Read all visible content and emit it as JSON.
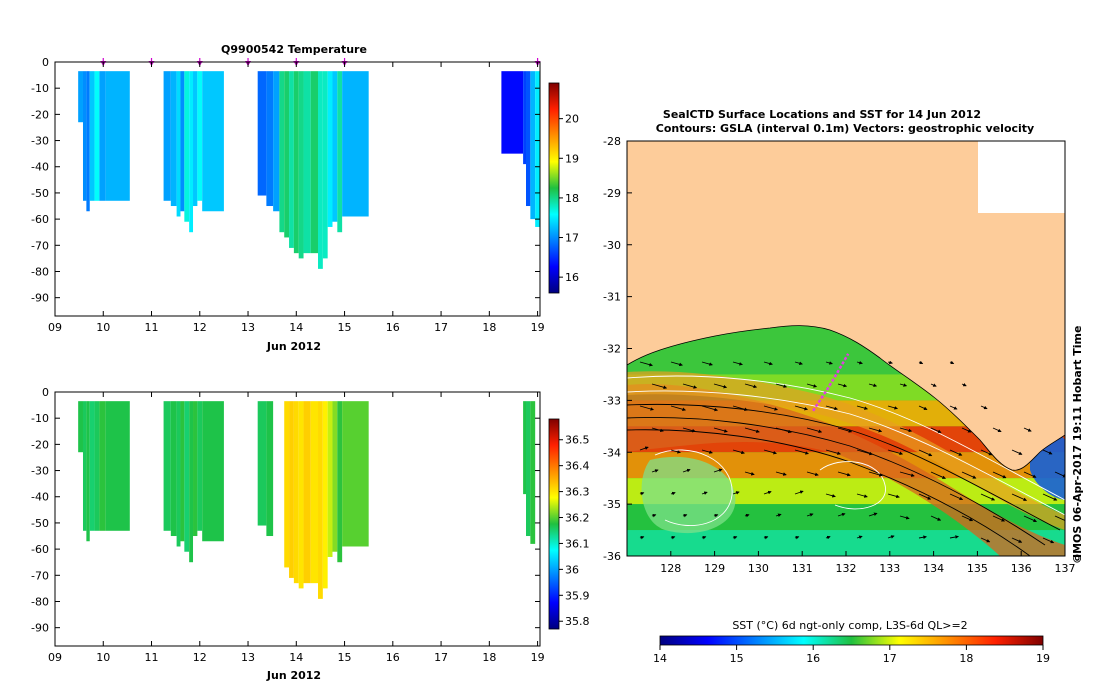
{
  "chart_data": [
    {
      "type": "heatmap",
      "title": "Q9900542  Temperature",
      "xlabel": "Jun 2012",
      "xlim": [
        9,
        19.05
      ],
      "ylim": [
        -97,
        0
      ],
      "x_ticks": [
        "09",
        "10",
        "11",
        "12",
        "13",
        "14",
        "15",
        "16",
        "17",
        "18",
        "19"
      ],
      "y_ticks": [
        "0",
        "-10",
        "-20",
        "-30",
        "-40",
        "-50",
        "-60",
        "-70",
        "-80",
        "-90"
      ],
      "colorbar": {
        "min": 15.6,
        "max": 20.9,
        "ticks": [
          "16",
          "17",
          "18",
          "19",
          "20"
        ],
        "palette": "jet"
      },
      "profile_markers_x": [
        10.0,
        11.0,
        12.0,
        13.0,
        14.0,
        15.0,
        19.0
      ],
      "profiles": [
        {
          "x0": 9.48,
          "x1": 9.58,
          "depth": 23,
          "value": 17.1
        },
        {
          "x0": 9.58,
          "x1": 9.65,
          "depth": 53,
          "value": 17.0
        },
        {
          "x0": 9.65,
          "x1": 9.72,
          "depth": 57,
          "value": 16.9
        },
        {
          "x0": 9.72,
          "x1": 9.82,
          "depth": 53,
          "value": 17.3
        },
        {
          "x0": 9.82,
          "x1": 9.92,
          "depth": 53,
          "value": 17.6
        },
        {
          "x0": 9.92,
          "x1": 10.05,
          "depth": 53,
          "value": 17.1
        },
        {
          "x0": 10.05,
          "x1": 10.55,
          "depth": 53,
          "value": 17.2
        },
        {
          "x0": 11.25,
          "x1": 11.4,
          "depth": 53,
          "value": 17.1
        },
        {
          "x0": 11.4,
          "x1": 11.52,
          "depth": 55,
          "value": 17.2
        },
        {
          "x0": 11.52,
          "x1": 11.6,
          "depth": 59,
          "value": 17.4
        },
        {
          "x0": 11.6,
          "x1": 11.68,
          "depth": 57,
          "value": 17.0
        },
        {
          "x0": 11.68,
          "x1": 11.78,
          "depth": 61,
          "value": 17.7
        },
        {
          "x0": 11.78,
          "x1": 11.86,
          "depth": 65,
          "value": 17.5
        },
        {
          "x0": 11.86,
          "x1": 11.95,
          "depth": 55,
          "value": 17.3
        },
        {
          "x0": 11.95,
          "x1": 12.05,
          "depth": 53,
          "value": 17.6
        },
        {
          "x0": 12.05,
          "x1": 12.5,
          "depth": 57,
          "value": 17.3
        },
        {
          "x0": 13.2,
          "x1": 13.38,
          "depth": 51,
          "value": 16.8
        },
        {
          "x0": 13.38,
          "x1": 13.52,
          "depth": 55,
          "value": 16.9
        },
        {
          "x0": 13.52,
          "x1": 13.65,
          "depth": 57,
          "value": 17.1
        },
        {
          "x0": 13.65,
          "x1": 13.75,
          "depth": 65,
          "value": 18.0
        },
        {
          "x0": 13.75,
          "x1": 13.85,
          "depth": 67,
          "value": 18.1
        },
        {
          "x0": 13.85,
          "x1": 13.95,
          "depth": 71,
          "value": 17.9
        },
        {
          "x0": 13.95,
          "x1": 14.05,
          "depth": 73,
          "value": 18.1
        },
        {
          "x0": 14.05,
          "x1": 14.15,
          "depth": 75,
          "value": 18.0
        },
        {
          "x0": 14.15,
          "x1": 14.3,
          "depth": 73,
          "value": 17.9
        },
        {
          "x0": 14.3,
          "x1": 14.45,
          "depth": 73,
          "value": 18.1
        },
        {
          "x0": 14.45,
          "x1": 14.55,
          "depth": 79,
          "value": 17.8
        },
        {
          "x0": 14.55,
          "x1": 14.65,
          "depth": 75,
          "value": 17.8
        },
        {
          "x0": 14.65,
          "x1": 14.75,
          "depth": 63,
          "value": 17.5
        },
        {
          "x0": 14.75,
          "x1": 14.85,
          "depth": 61,
          "value": 17.3
        },
        {
          "x0": 14.85,
          "x1": 14.95,
          "depth": 65,
          "value": 17.9
        },
        {
          "x0": 14.95,
          "x1": 15.5,
          "depth": 59,
          "value": 17.2
        },
        {
          "x0": 18.25,
          "x1": 18.7,
          "depth": 35,
          "value": 16.3
        },
        {
          "x0": 18.7,
          "x1": 18.76,
          "depth": 39,
          "value": 16.6
        },
        {
          "x0": 18.76,
          "x1": 18.85,
          "depth": 55,
          "value": 16.7
        },
        {
          "x0": 18.85,
          "x1": 18.95,
          "depth": 60,
          "value": 17.2
        },
        {
          "x0": 18.95,
          "x1": 19.05,
          "depth": 63,
          "value": 17.5
        }
      ]
    },
    {
      "type": "heatmap",
      "title": "",
      "xlabel": "Jun 2012",
      "xlim": [
        9,
        19.05
      ],
      "ylim": [
        -97,
        0
      ],
      "x_ticks": [
        "09",
        "10",
        "11",
        "12",
        "13",
        "14",
        "15",
        "16",
        "17",
        "18",
        "19"
      ],
      "y_ticks": [
        "0",
        "-10",
        "-20",
        "-30",
        "-40",
        "-50",
        "-60",
        "-70",
        "-80",
        "-90"
      ],
      "colorbar": {
        "min": 35.77,
        "max": 36.58,
        "ticks": [
          "35.8",
          "35.9",
          "36",
          "36.1",
          "36.2",
          "36.3",
          "36.4",
          "36.5"
        ],
        "palette": "jet"
      },
      "profiles": [
        {
          "x0": 9.48,
          "x1": 9.58,
          "depth": 23,
          "value": 36.17
        },
        {
          "x0": 9.58,
          "x1": 9.65,
          "depth": 53,
          "value": 36.16
        },
        {
          "x0": 9.65,
          "x1": 9.72,
          "depth": 57,
          "value": 36.17
        },
        {
          "x0": 9.72,
          "x1": 9.82,
          "depth": 53,
          "value": 36.15
        },
        {
          "x0": 9.82,
          "x1": 9.92,
          "depth": 53,
          "value": 36.16
        },
        {
          "x0": 9.92,
          "x1": 10.05,
          "depth": 53,
          "value": 36.18
        },
        {
          "x0": 10.05,
          "x1": 10.55,
          "depth": 53,
          "value": 36.17
        },
        {
          "x0": 11.25,
          "x1": 11.4,
          "depth": 53,
          "value": 36.16
        },
        {
          "x0": 11.4,
          "x1": 11.52,
          "depth": 55,
          "value": 36.17
        },
        {
          "x0": 11.52,
          "x1": 11.6,
          "depth": 59,
          "value": 36.16
        },
        {
          "x0": 11.6,
          "x1": 11.68,
          "depth": 57,
          "value": 36.18
        },
        {
          "x0": 11.68,
          "x1": 11.78,
          "depth": 61,
          "value": 36.15
        },
        {
          "x0": 11.78,
          "x1": 11.86,
          "depth": 65,
          "value": 36.17
        },
        {
          "x0": 11.86,
          "x1": 11.95,
          "depth": 55,
          "value": 36.18
        },
        {
          "x0": 11.95,
          "x1": 12.05,
          "depth": 53,
          "value": 36.16
        },
        {
          "x0": 12.05,
          "x1": 12.5,
          "depth": 57,
          "value": 36.17
        },
        {
          "x0": 13.2,
          "x1": 13.38,
          "depth": 51,
          "value": 36.16
        },
        {
          "x0": 13.38,
          "x1": 13.52,
          "depth": 55,
          "value": 36.17
        },
        {
          "x0": 13.75,
          "x1": 13.85,
          "depth": 67,
          "value": 36.31
        },
        {
          "x0": 13.85,
          "x1": 13.95,
          "depth": 71,
          "value": 36.32
        },
        {
          "x0": 13.95,
          "x1": 14.05,
          "depth": 73,
          "value": 36.31
        },
        {
          "x0": 14.05,
          "x1": 14.15,
          "depth": 75,
          "value": 36.3
        },
        {
          "x0": 14.15,
          "x1": 14.3,
          "depth": 73,
          "value": 36.32
        },
        {
          "x0": 14.3,
          "x1": 14.45,
          "depth": 73,
          "value": 36.3
        },
        {
          "x0": 14.45,
          "x1": 14.55,
          "depth": 79,
          "value": 36.31
        },
        {
          "x0": 14.55,
          "x1": 14.65,
          "depth": 75,
          "value": 36.29
        },
        {
          "x0": 14.65,
          "x1": 14.75,
          "depth": 63,
          "value": 36.25
        },
        {
          "x0": 14.75,
          "x1": 14.85,
          "depth": 61,
          "value": 36.22
        },
        {
          "x0": 14.85,
          "x1": 14.95,
          "depth": 65,
          "value": 36.18
        },
        {
          "x0": 14.95,
          "x1": 15.5,
          "depth": 59,
          "value": 36.2
        },
        {
          "x0": 18.7,
          "x1": 18.76,
          "depth": 39,
          "value": 36.17
        },
        {
          "x0": 18.76,
          "x1": 18.85,
          "depth": 55,
          "value": 36.16
        },
        {
          "x0": 18.85,
          "x1": 18.95,
          "depth": 58,
          "value": 36.18
        }
      ]
    },
    {
      "type": "heatmap",
      "title": "SealCTD Surface Locations and SST for 14 Jun 2012",
      "subtitle": "Contours: GSLA (interval 0.1m) Vectors: geostrophic velocity",
      "xlim": [
        127,
        137
      ],
      "ylim": [
        -36,
        -28
      ],
      "x_ticks": [
        "128",
        "129",
        "130",
        "131",
        "132",
        "133",
        "134",
        "135",
        "136",
        "137"
      ],
      "y_ticks": [
        "-28",
        "-29",
        "-30",
        "-31",
        "-32",
        "-33",
        "-34",
        "-35",
        "-36"
      ],
      "side_label": "IMOS 06-Apr-2017 19:11 Hobart Time",
      "copyright_symbol": "©",
      "colorbar": {
        "title": "SST (°C) 6d ngt-only comp, L3S-6d QL>=2",
        "min": 14,
        "max": 19,
        "ticks": [
          "14",
          "15",
          "16",
          "17",
          "18",
          "19"
        ],
        "palette": "jet"
      },
      "land_color": "#fdcc9a",
      "track_color": "#e040e0",
      "surface_track": [
        [
          131.25,
          -33.2
        ],
        [
          131.6,
          -32.75
        ],
        [
          131.85,
          -32.4
        ],
        [
          132.05,
          -32.1
        ]
      ],
      "sst_bands": [
        {
          "lat_from": -32.5,
          "lat_to": -33.0,
          "value": 16.8
        },
        {
          "lat_from": -33.0,
          "lat_to": -33.5,
          "value": 17.6
        },
        {
          "lat_from": -33.5,
          "lat_to": -34.0,
          "value": 18.3
        },
        {
          "lat_from": -34.0,
          "lat_to": -34.5,
          "value": 17.8
        },
        {
          "lat_from": -34.5,
          "lat_to": -35.0,
          "value": 17.0
        },
        {
          "lat_from": -35.0,
          "lat_to": -35.5,
          "value": 16.5
        },
        {
          "lat_from": -35.5,
          "lat_to": -36.0,
          "value": 16.2
        }
      ]
    }
  ]
}
